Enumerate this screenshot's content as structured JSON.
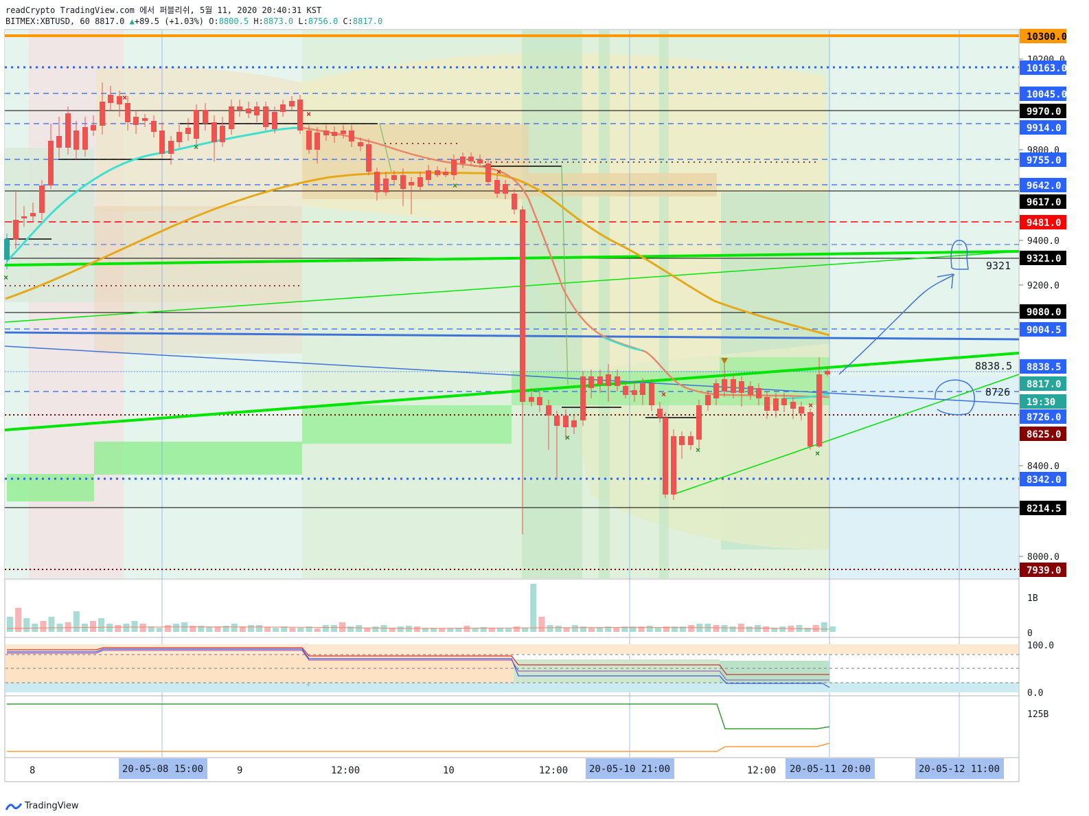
{
  "header": {
    "line1": "readCrypto TradingView.com 에서 퍼블리쉬, 5월 11, 2020 20:40:31 KST",
    "symbol": "BITMEX:XBTUSD, 60",
    "last": "8817.0",
    "change": "+89.5 (+1.03%)",
    "o_label": "O:",
    "o": "8800.5",
    "h_label": "H:",
    "h": "8873.0",
    "l_label": "L:",
    "l": "8756.0",
    "c_label": "C:",
    "c": "8817.0"
  },
  "price_axis": {
    "ticks": [
      "10200.0",
      "9800.0",
      "9400.0",
      "9200.0",
      "8400.0",
      "8000.0"
    ],
    "tags": [
      {
        "label": "10300.0",
        "bg": "#ff9800",
        "fg": "#000000"
      },
      {
        "label": "10163.0",
        "bg": "#2962ff",
        "fg": "#ffffff"
      },
      {
        "label": "10045.0",
        "bg": "#2962ff",
        "fg": "#ffffff"
      },
      {
        "label": "9970.0",
        "bg": "#000000",
        "fg": "#ffffff"
      },
      {
        "label": "9914.0",
        "bg": "#2962ff",
        "fg": "#ffffff"
      },
      {
        "label": "9755.0",
        "bg": "#2962ff",
        "fg": "#ffffff"
      },
      {
        "label": "9642.0",
        "bg": "#2962ff",
        "fg": "#ffffff"
      },
      {
        "label": "9617.0",
        "bg": "#000000",
        "fg": "#ffffff"
      },
      {
        "label": "9481.0",
        "bg": "#ff0000",
        "fg": "#ffffff"
      },
      {
        "label": "9321.0",
        "bg": "#000000",
        "fg": "#ffffff"
      },
      {
        "label": "9080.0",
        "bg": "#000000",
        "fg": "#ffffff"
      },
      {
        "label": "9004.5",
        "bg": "#2962ff",
        "fg": "#ffffff"
      },
      {
        "label": "8838.5",
        "bg": "#2962ff",
        "fg": "#ffffff"
      },
      {
        "label": "8817.0",
        "bg": "#26a69a",
        "fg": "#ffffff"
      },
      {
        "label": "19:30",
        "bg": "#26a69a",
        "fg": "#ffffff"
      },
      {
        "label": "8726.0",
        "bg": "#2962ff",
        "fg": "#ffffff"
      },
      {
        "label": "8625.0",
        "bg": "#880000",
        "fg": "#ffffff"
      },
      {
        "label": "8342.0",
        "bg": "#2962ff",
        "fg": "#ffffff"
      },
      {
        "label": "8214.5",
        "bg": "#000000",
        "fg": "#ffffff"
      },
      {
        "label": "7939.0",
        "bg": "#880000",
        "fg": "#ffffff"
      }
    ]
  },
  "annotations": {
    "a9321": "9321",
    "a8838": "8838.5",
    "a8726": "8726"
  },
  "volume_axis": {
    "top": "1B",
    "bottom": "0"
  },
  "osc_axis": {
    "top": "100.0",
    "bottom": "0.0"
  },
  "bottom_axis": {
    "label": "125B"
  },
  "time_axis": {
    "labels": [
      "8",
      "9",
      "12:00",
      "10",
      "12:00",
      "12:00"
    ],
    "highlights": [
      "20-05-08   15:00",
      "20-05-10   21:00",
      "20-05-11   20:00",
      "20-05-12   11:00"
    ]
  },
  "footer": {
    "brand": "TradingView"
  },
  "colors": {
    "up": "#26a69a",
    "down": "#ef5350",
    "accent_blue": "#2962ff",
    "green_line": "#00e600",
    "orange_line": "#ff9800",
    "ema_gold": "#e6a817",
    "ema_teal": "#40e0d0",
    "highlight_bg": "#a3c0f0"
  },
  "icons": [
    "tradingview-logo-icon"
  ]
}
